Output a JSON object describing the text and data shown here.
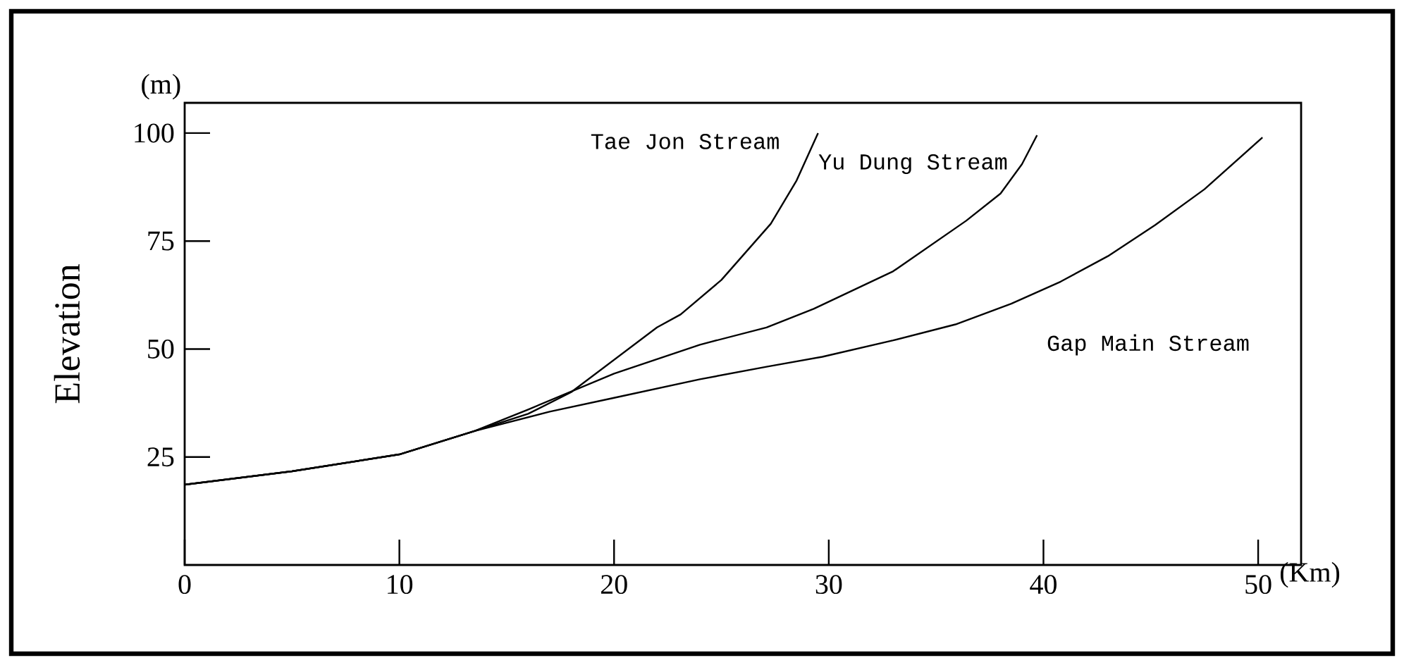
{
  "chart_data": {
    "type": "line",
    "xlabel": "(Km)",
    "ylabel": "Elevation",
    "annotations": [
      "(m)"
    ],
    "xlim": [
      0,
      52
    ],
    "ylim": [
      0,
      107
    ],
    "xticks": [
      0,
      10,
      20,
      30,
      40,
      50
    ],
    "yticks": [
      25,
      50,
      75,
      100
    ],
    "grid": false,
    "legend": false,
    "marker": "none",
    "line_style": "solid",
    "series": [
      {
        "name": "Tae Jon Stream",
        "color": "#000000",
        "x": [
          0,
          5,
          10,
          13.5,
          16,
          18,
          20,
          22,
          23.1,
          25,
          27.3,
          28.5,
          29.5
        ],
        "values": [
          18.6,
          21.7,
          25.6,
          31,
          35,
          40,
          47.5,
          55,
          58,
          66,
          79,
          89,
          100
        ]
      },
      {
        "name": "Yu Dung Stream",
        "color": "#000000",
        "x": [
          0,
          5,
          10,
          13.5,
          16,
          20,
          24,
          27.1,
          29.3,
          33,
          36.4,
          38,
          39,
          39.7
        ],
        "values": [
          18.6,
          21.7,
          25.6,
          31,
          36,
          44.3,
          51,
          55,
          59.3,
          68,
          79.7,
          86,
          92.8,
          99.5
        ]
      },
      {
        "name": "Gap Main Stream",
        "color": "#000000",
        "x": [
          0,
          5,
          10,
          13.5,
          17,
          20,
          24,
          27.1,
          29.7,
          33,
          35.9,
          38.5,
          40.8,
          43,
          45.2,
          47.5,
          50.2
        ],
        "values": [
          18.6,
          21.7,
          25.6,
          31,
          35.5,
          38.7,
          43,
          45.9,
          48.2,
          52,
          55.7,
          60.5,
          65.6,
          71.5,
          78.7,
          87,
          99
        ]
      }
    ]
  }
}
